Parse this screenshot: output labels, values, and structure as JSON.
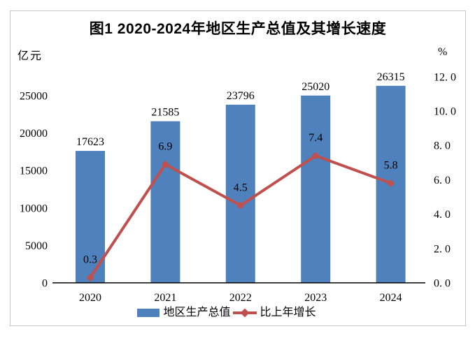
{
  "chart_data": {
    "type": "bar+line",
    "title": "图1 2020-2024年地区生产总值及其增长速度",
    "categories": [
      "2020",
      "2021",
      "2022",
      "2023",
      "2024"
    ],
    "series": [
      {
        "name": "地区生产总值",
        "type": "bar",
        "axis": "left",
        "values": [
          17623,
          21585,
          23796,
          25020,
          26315
        ],
        "labels": [
          "17623",
          "21585",
          "23796",
          "25020",
          "26315"
        ],
        "color": "#4f81bd"
      },
      {
        "name": "比上年增长",
        "type": "line",
        "axis": "right",
        "marker": "diamond",
        "values": [
          0.3,
          6.9,
          4.5,
          7.4,
          5.8
        ],
        "labels": [
          "0.3",
          "6.9",
          "4.5",
          "7.4",
          "5.8"
        ],
        "color": "#c0504d"
      }
    ],
    "left_axis": {
      "unit": "亿元",
      "ticks": [
        "0",
        "5000",
        "10000",
        "15000",
        "20000",
        "25000"
      ],
      "tick_values": [
        0,
        5000,
        10000,
        15000,
        20000,
        25000
      ],
      "range": [
        0,
        27500
      ]
    },
    "right_axis": {
      "unit": "%",
      "ticks": [
        "0. 0",
        "2. 0",
        "4. 0",
        "6. 0",
        "8. 0",
        "10. 0",
        "12. 0"
      ],
      "tick_values": [
        0,
        2,
        4,
        6,
        8,
        10,
        12
      ],
      "range": [
        0,
        12.2
      ]
    },
    "grid": false,
    "legend_position": "bottom"
  },
  "colors": {
    "bar": "#4f81bd",
    "line": "#c0504d",
    "axis_line": "#000000",
    "frame_border": "#c7c7c7",
    "text": "#000000",
    "background": "#ffffff"
  }
}
